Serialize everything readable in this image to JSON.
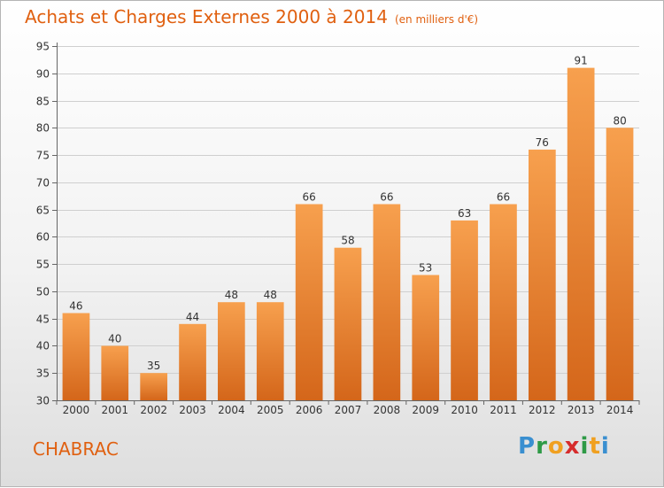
{
  "title": "Achats et Charges Externes 2000 à 2014",
  "unit": "(en milliers d'€)",
  "commune": "CHABRAC",
  "logo_text": "Proxiti",
  "colors": {
    "title": "#e06010",
    "bar_top": "#f7a04e",
    "bar_bottom": "#d4661a",
    "grid": "#cfcfcf",
    "text": "#333333"
  },
  "chart_data": {
    "type": "bar",
    "title": "Achats et Charges Externes 2000 à 2014",
    "xlabel": "",
    "ylabel": "",
    "ylim": [
      30,
      95
    ],
    "yticks": [
      30,
      35,
      40,
      45,
      50,
      55,
      60,
      65,
      70,
      75,
      80,
      85,
      90,
      95
    ],
    "grid": true,
    "categories": [
      "2000",
      "2001",
      "2002",
      "2003",
      "2004",
      "2005",
      "2006",
      "2007",
      "2008",
      "2009",
      "2010",
      "2011",
      "2012",
      "2013",
      "2014"
    ],
    "values": [
      46,
      40,
      35,
      44,
      48,
      48,
      66,
      58,
      66,
      53,
      63,
      66,
      76,
      91,
      80
    ]
  }
}
